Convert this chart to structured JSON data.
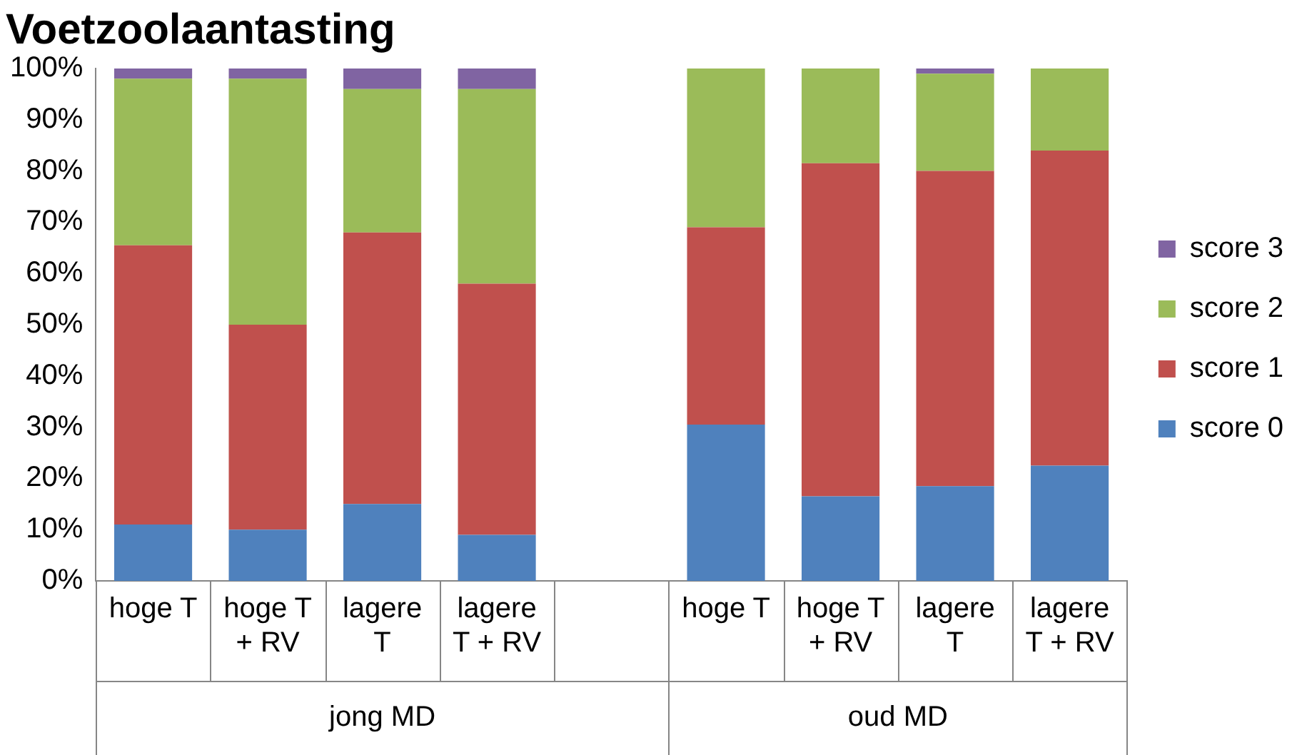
{
  "chart_data": {
    "type": "bar",
    "title": "Voetzoolaantasting",
    "stacked": true,
    "categories": [
      "hoge T",
      "hoge T + RV",
      "lagere T",
      "lagere T + RV",
      null,
      "hoge T",
      "hoge T + RV",
      "lagere T",
      "lagere T + RV"
    ],
    "series": [
      {
        "name": "score 0",
        "color": "#4f81bd",
        "values": [
          11,
          10,
          15,
          9,
          null,
          30.5,
          16.5,
          18.5,
          22.5
        ]
      },
      {
        "name": "score 1",
        "color": "#c0504d",
        "values": [
          54.5,
          40,
          53,
          49,
          null,
          38.5,
          65,
          61.5,
          61.5
        ]
      },
      {
        "name": "score 2",
        "color": "#9bbb59",
        "values": [
          32.5,
          48,
          28,
          38,
          null,
          31,
          18.5,
          19,
          16
        ]
      },
      {
        "name": "score 3",
        "color": "#8064a2",
        "values": [
          2,
          2,
          4,
          4,
          null,
          0,
          0,
          1,
          0
        ]
      }
    ],
    "ylim": [
      0,
      100
    ],
    "yticks": [
      {
        "value": 0,
        "label": "0%"
      },
      {
        "value": 10,
        "label": "10%"
      },
      {
        "value": 20,
        "label": "20%"
      },
      {
        "value": 30,
        "label": "30%"
      },
      {
        "value": 40,
        "label": "40%"
      },
      {
        "value": 50,
        "label": "50%"
      },
      {
        "value": 60,
        "label": "60%"
      },
      {
        "value": 70,
        "label": "70%"
      },
      {
        "value": 80,
        "label": "80%"
      },
      {
        "value": 90,
        "label": "90%"
      },
      {
        "value": 100,
        "label": "100%"
      }
    ],
    "annotations": [
      "jong MD",
      "oud MD"
    ],
    "grid": false,
    "legend": "right"
  }
}
